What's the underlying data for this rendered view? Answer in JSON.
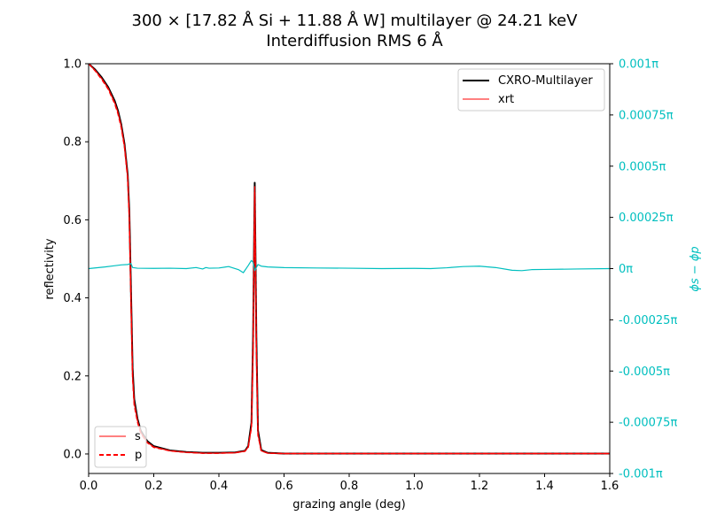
{
  "chart_data": {
    "type": "line",
    "title": "300 × [17.82 Å Si + 11.88 Å W] multilayer @ 24.21 keV",
    "subtitle": "Interdiffusion RMS 6 Å",
    "xlabel": "grazing angle (deg)",
    "ylabel": "reflectivity",
    "y2label": "ϕs − ϕp",
    "xlim": [
      0,
      1.6
    ],
    "ylim": [
      -0.05,
      1.0
    ],
    "y2lim": [
      -0.001,
      0.001
    ],
    "x_ticks": [
      "0.0",
      "0.2",
      "0.4",
      "0.6",
      "0.8",
      "1.0",
      "1.2",
      "1.4",
      "1.6"
    ],
    "y_ticks": [
      "0.0",
      "0.2",
      "0.4",
      "0.6",
      "0.8",
      "1.0"
    ],
    "y2_ticks": [
      "-0.001π",
      "-0.00075π",
      "-0.0005π",
      "-0.00025π",
      "0π",
      "0.00025π",
      "0.0005π",
      "0.00075π",
      "0.001π"
    ],
    "grid": false,
    "legend_top": {
      "placement": "top-right",
      "entries": [
        "CXRO-Multilayer",
        "xrt"
      ]
    },
    "legend_bottom": {
      "placement": "bottom-left",
      "entries": [
        "s",
        "p"
      ]
    },
    "colors": {
      "cxro": "#000000",
      "xrt": "#ff0000",
      "phase": "#00bfbf"
    },
    "series": [
      {
        "name": "CXRO-Multilayer",
        "axis": "left",
        "x": [
          0.0,
          0.02,
          0.04,
          0.06,
          0.08,
          0.09,
          0.1,
          0.11,
          0.12,
          0.125,
          0.13,
          0.135,
          0.14,
          0.15,
          0.16,
          0.18,
          0.2,
          0.25,
          0.3,
          0.35,
          0.4,
          0.45,
          0.48,
          0.49,
          0.5,
          0.505,
          0.51,
          0.515,
          0.52,
          0.53,
          0.55,
          0.6,
          0.8,
          1.0,
          1.2,
          1.4,
          1.6
        ],
        "y": [
          1.0,
          0.985,
          0.965,
          0.94,
          0.905,
          0.88,
          0.845,
          0.795,
          0.715,
          0.62,
          0.42,
          0.22,
          0.14,
          0.09,
          0.06,
          0.033,
          0.02,
          0.009,
          0.005,
          0.003,
          0.003,
          0.004,
          0.008,
          0.02,
          0.08,
          0.3,
          0.695,
          0.3,
          0.06,
          0.01,
          0.003,
          0.001,
          0.001,
          0.001,
          0.001,
          0.001,
          0.001
        ]
      },
      {
        "name": "s",
        "axis": "left",
        "x": [
          0.0,
          0.02,
          0.04,
          0.06,
          0.08,
          0.09,
          0.1,
          0.11,
          0.12,
          0.125,
          0.13,
          0.135,
          0.14,
          0.15,
          0.16,
          0.18,
          0.2,
          0.25,
          0.3,
          0.35,
          0.4,
          0.45,
          0.48,
          0.49,
          0.5,
          0.505,
          0.51,
          0.515,
          0.52,
          0.53,
          0.55,
          0.6,
          0.8,
          1.0,
          1.2,
          1.4,
          1.6
        ],
        "y": [
          1.0,
          0.983,
          0.962,
          0.937,
          0.9,
          0.875,
          0.84,
          0.79,
          0.71,
          0.61,
          0.4,
          0.2,
          0.13,
          0.085,
          0.055,
          0.03,
          0.018,
          0.008,
          0.004,
          0.002,
          0.002,
          0.003,
          0.007,
          0.018,
          0.07,
          0.28,
          0.685,
          0.28,
          0.05,
          0.008,
          0.002,
          0.001,
          0.001,
          0.001,
          0.001,
          0.001,
          0.001
        ]
      },
      {
        "name": "p",
        "axis": "left",
        "x": [
          0.0,
          0.02,
          0.04,
          0.06,
          0.08,
          0.09,
          0.1,
          0.11,
          0.12,
          0.125,
          0.13,
          0.135,
          0.14,
          0.15,
          0.16,
          0.18,
          0.2,
          0.25,
          0.3,
          0.35,
          0.4,
          0.45,
          0.48,
          0.49,
          0.5,
          0.505,
          0.51,
          0.515,
          0.52,
          0.53,
          0.55,
          0.6,
          0.8,
          1.0,
          1.2,
          1.4,
          1.6
        ],
        "y": [
          1.0,
          0.982,
          0.96,
          0.935,
          0.898,
          0.872,
          0.837,
          0.787,
          0.705,
          0.6,
          0.39,
          0.195,
          0.125,
          0.082,
          0.053,
          0.029,
          0.017,
          0.008,
          0.004,
          0.002,
          0.002,
          0.003,
          0.007,
          0.017,
          0.068,
          0.27,
          0.67,
          0.27,
          0.048,
          0.008,
          0.002,
          0.001,
          0.001,
          0.001,
          0.001,
          0.001,
          0.001
        ]
      },
      {
        "name": "ϕs − ϕp",
        "axis": "right",
        "x": [
          0.0,
          0.05,
          0.1,
          0.12,
          0.13,
          0.135,
          0.15,
          0.2,
          0.25,
          0.3,
          0.33,
          0.35,
          0.36,
          0.37,
          0.4,
          0.43,
          0.46,
          0.475,
          0.49,
          0.5,
          0.505,
          0.51,
          0.52,
          0.53,
          0.55,
          0.6,
          0.7,
          0.8,
          0.9,
          1.0,
          1.05,
          1.1,
          1.15,
          1.2,
          1.25,
          1.3,
          1.33,
          1.36,
          1.4,
          1.5,
          1.6
        ],
        "y": [
          0.0,
          8e-06,
          1.8e-05,
          2e-05,
          2.5e-05,
          5e-06,
          2e-06,
          1e-06,
          2e-06,
          0.0,
          5e-06,
          -2e-06,
          5e-06,
          2e-06,
          3e-06,
          1e-05,
          -5e-06,
          -2e-05,
          1.5e-05,
          4e-05,
          3e-05,
          -1e-05,
          2e-05,
          1.2e-05,
          8e-06,
          5e-06,
          3e-06,
          2e-06,
          0.0,
          1e-06,
          0.0,
          4e-06,
          1e-05,
          1.2e-05,
          5e-06,
          -8e-06,
          -1e-05,
          -5e-06,
          -4e-06,
          -2e-06,
          0.0
        ]
      }
    ]
  }
}
